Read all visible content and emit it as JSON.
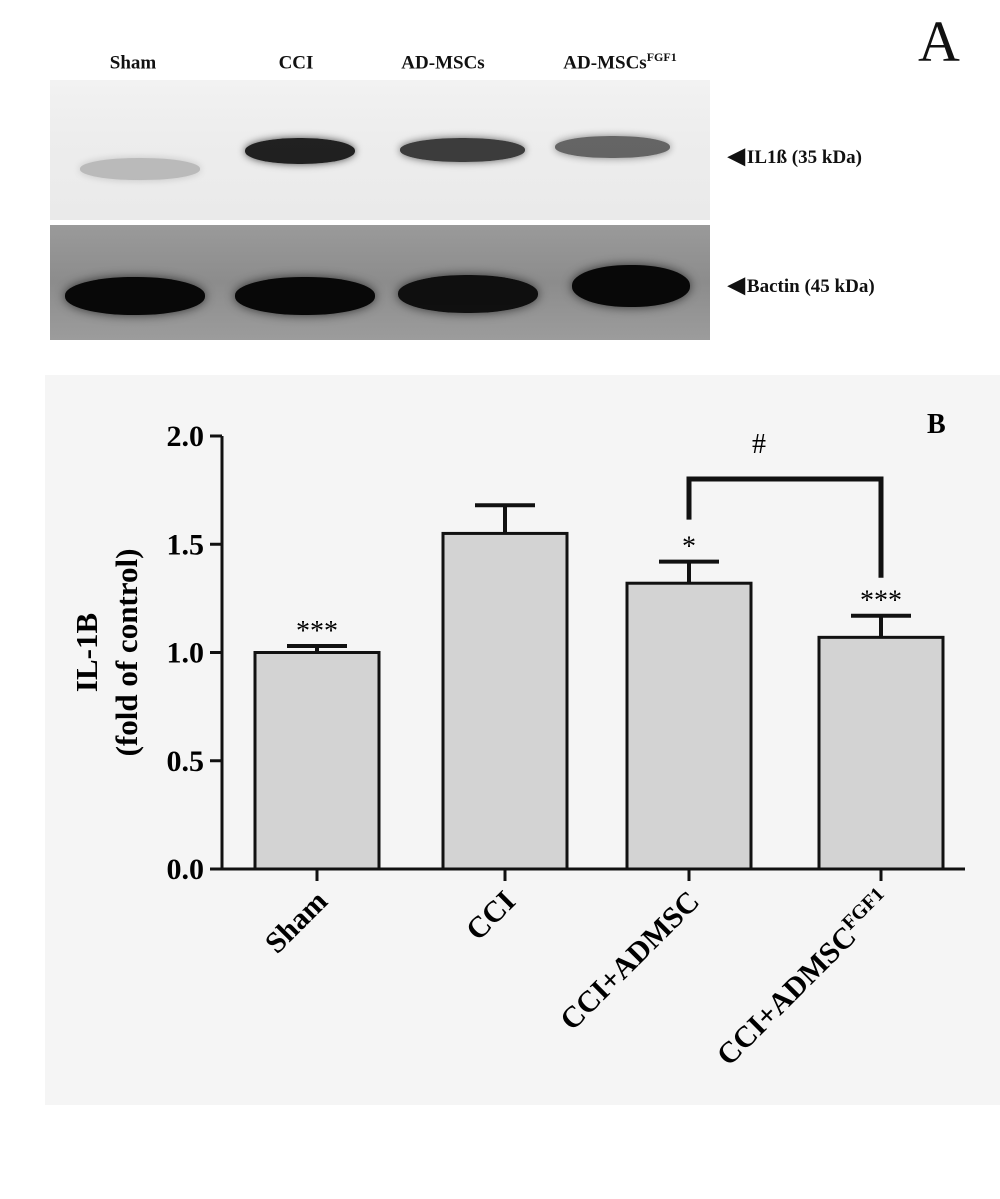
{
  "panel_a": {
    "letter": "A",
    "lanes": [
      {
        "label": "Sham",
        "sup": ""
      },
      {
        "label": "CCI",
        "sup": ""
      },
      {
        "label": "AD-MSCs",
        "sup": ""
      },
      {
        "label": "AD-MSCs",
        "sup": "FGF1"
      }
    ],
    "band_labels": [
      {
        "arrow": "◀",
        "text": "IL1ß (35 kDa)"
      },
      {
        "arrow": "◀",
        "text": "Bactin (45 kDa)"
      }
    ],
    "band_intensity_top": [
      0.22,
      0.9,
      0.78,
      0.6
    ],
    "band_intensity_bottom": [
      1.0,
      1.0,
      0.95,
      1.0
    ]
  },
  "chart_data": {
    "type": "bar",
    "panel_letter": "B",
    "categories": [
      "Sham",
      "CCI",
      "CCI+ADMSC",
      "CCI+ADMSC"
    ],
    "category_sups": [
      "",
      "",
      "",
      "FGF1"
    ],
    "values": [
      1.0,
      1.55,
      1.32,
      1.07
    ],
    "errors": [
      0.03,
      0.13,
      0.1,
      0.1
    ],
    "significance": [
      "***",
      "",
      "*",
      "***"
    ],
    "bracket": {
      "from": 2,
      "to": 3,
      "label": "#"
    },
    "ylabel_line1": "IL-1B",
    "ylabel_line2": "(fold of control)",
    "xlabel": "",
    "ylim": [
      0.0,
      2.0
    ],
    "yticks": [
      "0.0",
      "0.5",
      "1.0",
      "1.5",
      "2.0"
    ],
    "bar_color": "#d3d3d3"
  }
}
